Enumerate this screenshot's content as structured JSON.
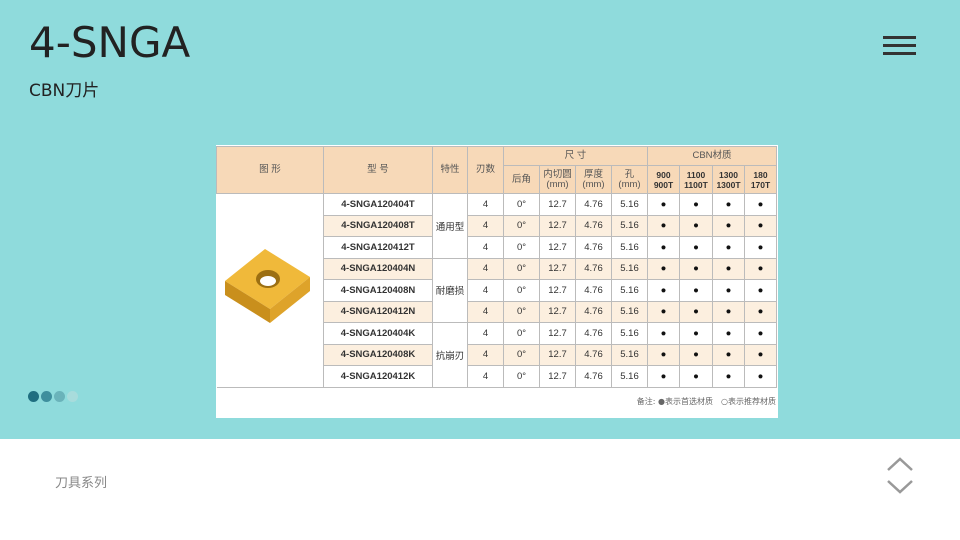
{
  "header": {
    "title": "4-SNGA",
    "subtitle": "CBN刀片",
    "menu_icon": "hamburger-menu-icon"
  },
  "carousel": {
    "slides": 4,
    "active": 1,
    "dot_colors": [
      "#1f6e80",
      "#3f8f9d",
      "#6ab3ba",
      "#a8dcdc"
    ]
  },
  "table": {
    "headers": {
      "shape": "图 形",
      "model": "型 号",
      "feature": "特性",
      "edges": "刃数",
      "size": "尺 寸",
      "cbn": "CBN材质",
      "size_cols": [
        [
          "后角",
          ""
        ],
        [
          "内切圆",
          "(mm)"
        ],
        [
          "厚度",
          "(mm)"
        ],
        [
          "孔",
          "(mm)"
        ]
      ],
      "cbn_cols": [
        [
          "900",
          "900T"
        ],
        [
          "1100",
          "1100T"
        ],
        [
          "1300",
          "1300T"
        ],
        [
          "180",
          "170T"
        ]
      ]
    },
    "groups": [
      {
        "feature": "通用型",
        "rows": [
          {
            "model": "4-SNGA120404T",
            "edges": "4",
            "angle": "0°",
            "ic": "12.7",
            "thick": "4.76",
            "hole": "5.16",
            "cbn": [
              "●",
              "●",
              "●",
              "●"
            ]
          },
          {
            "model": "4-SNGA120408T",
            "edges": "4",
            "angle": "0°",
            "ic": "12.7",
            "thick": "4.76",
            "hole": "5.16",
            "cbn": [
              "●",
              "●",
              "●",
              "●"
            ]
          },
          {
            "model": "4-SNGA120412T",
            "edges": "4",
            "angle": "0°",
            "ic": "12.7",
            "thick": "4.76",
            "hole": "5.16",
            "cbn": [
              "●",
              "●",
              "●",
              "●"
            ]
          }
        ]
      },
      {
        "feature": "耐磨损",
        "rows": [
          {
            "model": "4-SNGA120404N",
            "edges": "4",
            "angle": "0°",
            "ic": "12.7",
            "thick": "4.76",
            "hole": "5.16",
            "cbn": [
              "●",
              "●",
              "●",
              "●"
            ]
          },
          {
            "model": "4-SNGA120408N",
            "edges": "4",
            "angle": "0°",
            "ic": "12.7",
            "thick": "4.76",
            "hole": "5.16",
            "cbn": [
              "●",
              "●",
              "●",
              "●"
            ]
          },
          {
            "model": "4-SNGA120412N",
            "edges": "4",
            "angle": "0°",
            "ic": "12.7",
            "thick": "4.76",
            "hole": "5.16",
            "cbn": [
              "●",
              "●",
              "●",
              "●"
            ]
          }
        ]
      },
      {
        "feature": "抗崩刃",
        "rows": [
          {
            "model": "4-SNGA120404K",
            "edges": "4",
            "angle": "0°",
            "ic": "12.7",
            "thick": "4.76",
            "hole": "5.16",
            "cbn": [
              "●",
              "●",
              "●",
              "●"
            ]
          },
          {
            "model": "4-SNGA120408K",
            "edges": "4",
            "angle": "0°",
            "ic": "12.7",
            "thick": "4.76",
            "hole": "5.16",
            "cbn": [
              "●",
              "●",
              "●",
              "●"
            ]
          },
          {
            "model": "4-SNGA120412K",
            "edges": "4",
            "angle": "0°",
            "ic": "12.7",
            "thick": "4.76",
            "hole": "5.16",
            "cbn": [
              "●",
              "●",
              "●",
              "●"
            ]
          }
        ]
      }
    ],
    "note": "备注: ●表示首选材质　○表示推荐材质"
  },
  "footer": {
    "label": "刀具系列",
    "up_icon": "chevron-up-icon",
    "down_icon": "chevron-down-icon"
  }
}
